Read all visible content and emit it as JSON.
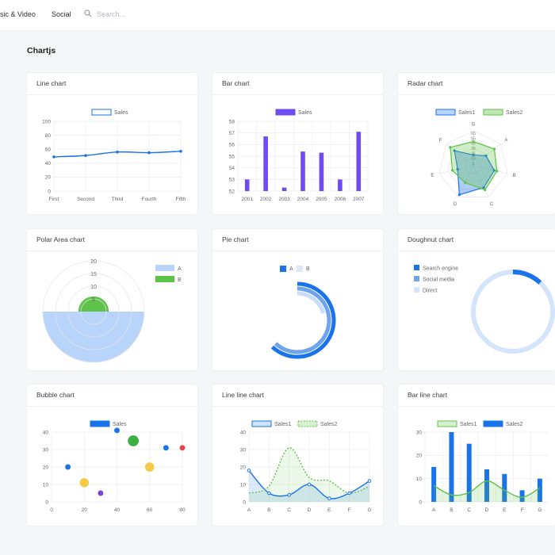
{
  "nav": {
    "items": [
      "sic & Video",
      "Social"
    ],
    "search_placeholder": "Search..."
  },
  "section_title": "Chartjs",
  "colors": {
    "primary": "#1a73e8",
    "purple": "#6f4cf2",
    "green": "#5fc24a",
    "light_blue": "#b8d4fa",
    "red": "#e64646",
    "yellow": "#f7c948"
  },
  "chart_data": [
    {
      "id": "line",
      "title": "Line chart",
      "type": "line",
      "categories": [
        "First",
        "Second",
        "Third",
        "Fourth",
        "Fifth"
      ],
      "series": [
        {
          "name": "Sales",
          "values": [
            49,
            51,
            56,
            55,
            57
          ]
        }
      ],
      "ylim": [
        0,
        100
      ],
      "yticks": [
        "100",
        "80",
        "60",
        "40",
        "20",
        "0"
      ],
      "legend": "top"
    },
    {
      "id": "bar",
      "title": "Bar chart",
      "type": "bar",
      "categories": [
        "2001",
        "2002",
        "2003",
        "2004",
        "2005",
        "2006",
        "2007"
      ],
      "series": [
        {
          "name": "Sales",
          "values": [
            53,
            56.7,
            52.3,
            55.4,
            55.3,
            53,
            57.1
          ]
        }
      ],
      "ylim": [
        52,
        58
      ],
      "yticks": [
        "58",
        "57",
        "56",
        "55",
        "54",
        "53",
        "52"
      ],
      "legend": "top"
    },
    {
      "id": "radar",
      "title": "Radar chart",
      "type": "radar",
      "categories": [
        "A",
        "B",
        "C",
        "D",
        "E",
        "F",
        "G"
      ],
      "rticks": [
        "5",
        "15",
        "25",
        "35",
        "45",
        "55",
        "65"
      ],
      "series": [
        {
          "name": "Sales1",
          "values": [
            30,
            40,
            45,
            60,
            30,
            45,
            20
          ]
        },
        {
          "name": "Sales2",
          "values": [
            50,
            45,
            50,
            35,
            40,
            55,
            45
          ]
        }
      ],
      "rlim": [
        0,
        65
      ],
      "legend": "top"
    },
    {
      "id": "polar",
      "title": "Polar Area chart",
      "type": "polar",
      "categories": [
        "A",
        "B"
      ],
      "values": [
        20,
        6
      ],
      "rticks": [
        "20",
        "15",
        "10",
        "5"
      ],
      "legend": "right"
    },
    {
      "id": "pie",
      "title": "Pie chart",
      "type": "pie",
      "categories": [
        "A",
        "B"
      ],
      "values": [
        62,
        38
      ],
      "legend": "top"
    },
    {
      "id": "doughnut",
      "title": "Doughnut chart",
      "type": "doughnut",
      "categories": [
        "Search engine",
        "Social media",
        "Direct"
      ],
      "values": [
        12,
        0,
        88
      ],
      "legend": "left"
    },
    {
      "id": "bubble",
      "title": "Bubble chart",
      "type": "scatter",
      "series": [
        {
          "name": "Sales",
          "points": [
            [
              10,
              20,
              3
            ],
            [
              20,
              11,
              5
            ],
            [
              30,
              5,
              3
            ],
            [
              40,
              41,
              3
            ],
            [
              50,
              35,
              6
            ],
            [
              60,
              20,
              5
            ],
            [
              70,
              31,
              3
            ],
            [
              80,
              31,
              3
            ]
          ]
        }
      ],
      "xlim": [
        0,
        80
      ],
      "ylim": [
        0,
        40
      ],
      "xticks": [
        "0",
        "20",
        "40",
        "60",
        "80"
      ],
      "yticks": [
        "40",
        "30",
        "20",
        "10",
        "0"
      ],
      "legend": "top"
    },
    {
      "id": "lineline",
      "title": "Line line chart",
      "type": "area",
      "categories": [
        "A",
        "B",
        "C",
        "D",
        "E",
        "F",
        "G"
      ],
      "series": [
        {
          "name": "Sales1",
          "values": [
            18,
            5,
            4,
            10,
            2,
            5,
            12
          ]
        },
        {
          "name": "Sales2",
          "values": [
            5,
            9,
            31,
            14,
            12,
            5,
            9
          ]
        }
      ],
      "ylim": [
        0,
        40
      ],
      "yticks": [
        "40",
        "30",
        "20",
        "10",
        "0"
      ],
      "legend": "top"
    },
    {
      "id": "barline",
      "title": "Bar line chart",
      "type": "bar",
      "categories": [
        "A",
        "B",
        "C",
        "D",
        "E",
        "F",
        "G"
      ],
      "series": [
        {
          "name": "Sales1",
          "type": "line",
          "values": [
            7,
            3,
            4,
            9,
            5,
            2,
            6
          ]
        },
        {
          "name": "Sales2",
          "type": "bar",
          "values": [
            15,
            30,
            25,
            14,
            12,
            5,
            10
          ]
        }
      ],
      "ylim": [
        0,
        30
      ],
      "yticks": [
        "30",
        "20",
        "10",
        "0"
      ],
      "legend": "top"
    }
  ]
}
